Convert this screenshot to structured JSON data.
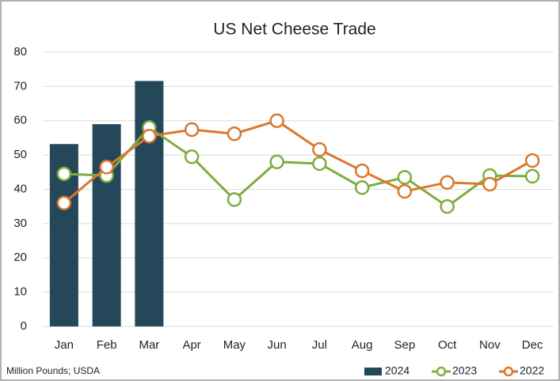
{
  "chart_data": {
    "type": "bar",
    "title": "US Net Cheese Trade",
    "note": "Million Pounds; USDA",
    "categories": [
      "Jan",
      "Feb",
      "Mar",
      "Apr",
      "May",
      "Jun",
      "Jul",
      "Aug",
      "Sep",
      "Oct",
      "Nov",
      "Dec"
    ],
    "series": [
      {
        "name": "2024",
        "type": "bar",
        "color": "#25475a",
        "values": [
          53.2,
          59,
          71.6,
          null,
          null,
          null,
          null,
          null,
          null,
          null,
          null,
          null
        ]
      },
      {
        "name": "2023",
        "type": "line",
        "color": "#7dae3e",
        "values": [
          44.5,
          44,
          58,
          49.5,
          37,
          48,
          47.5,
          40.5,
          43.5,
          35,
          44,
          43.8
        ]
      },
      {
        "name": "2022",
        "type": "line",
        "color": "#d9782e",
        "values": [
          36,
          46.5,
          55.5,
          57.4,
          56.2,
          60,
          51.6,
          45.4,
          39.4,
          42,
          41.5,
          48.4
        ]
      }
    ],
    "ylim": [
      0,
      80
    ],
    "yticks": [
      0,
      10,
      20,
      30,
      40,
      50,
      60,
      70,
      80
    ],
    "grid": true
  }
}
